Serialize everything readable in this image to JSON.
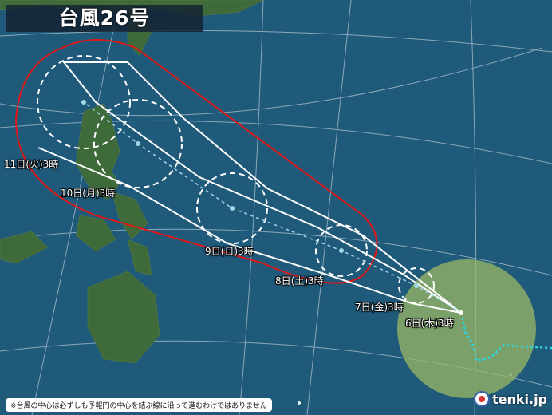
{
  "title": "台風26号",
  "colors": {
    "ocean": "#1f5a7a",
    "land": "#3f6a3a",
    "warning_envelope": "#e01818",
    "storm_area": "#9bb865",
    "track": "#ffffff",
    "past_track": "#2ad6e0"
  },
  "forecast_points": [
    {
      "label": "6日(木)3時",
      "type": "current"
    },
    {
      "label": "7日(金)3時"
    },
    {
      "label": "8日(土)3時"
    },
    {
      "label": "9日(日)3時"
    },
    {
      "label": "10日(月)3時"
    },
    {
      "label": "11日(火)3時"
    }
  ],
  "note": "※台風の中心は必ずしも予報円の中心を結ぶ線に沿って進むわけではありません",
  "logo": "tenki.jp"
}
